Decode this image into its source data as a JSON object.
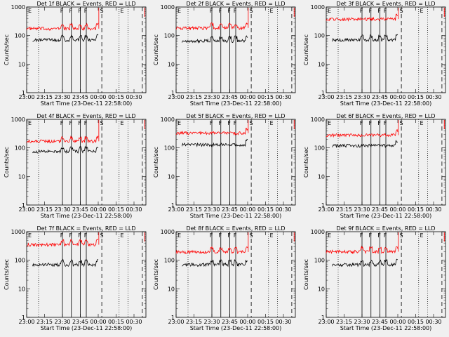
{
  "chart_data": {
    "type": "line",
    "xlabel": "Start Time (23-Dec-11 22:58:00)",
    "ylabel": "Counts/sec",
    "yscale": "log",
    "ylim": [
      1,
      1000
    ],
    "y_ticks": [
      1,
      10,
      100,
      1000
    ],
    "y_tick_labels": [
      "1",
      "10",
      "100",
      "1000"
    ],
    "x_range_minutes": [
      0,
      100
    ],
    "x_tick_labels": [
      "23:00",
      "23:15",
      "23:30",
      "23:45",
      "00:00",
      "00:15",
      "00:30"
    ],
    "x_tick_minutes": [
      0,
      15,
      30,
      45,
      60,
      75,
      90
    ],
    "series_colors": {
      "events": "#000000",
      "lld": "#ff0000"
    },
    "panels": [
      {
        "title": "Det 1f BLACK = Events, RED = LLD",
        "events": {
          "start": 5,
          "end": 60,
          "level": 70,
          "breaks": [
            30,
            37.5,
            45,
            50
          ]
        },
        "lld": {
          "start": 0,
          "end": 60,
          "level": 175,
          "breaks": [
            30,
            37.5,
            45,
            50
          ]
        },
        "f_times": [
          30,
          37.5,
          45,
          50
        ],
        "s_time": 63,
        "e_time": 80,
        "dotted_lines": [
          10,
          77.5,
          85
        ],
        "dashed_lines": [
          63,
          97
        ]
      },
      {
        "title": "Det 2f BLACK = Events, RED = LLD",
        "events": {
          "start": 5,
          "end": 60,
          "level": 65,
          "breaks": [
            30,
            37.5,
            45,
            50
          ]
        },
        "lld": {
          "start": 0,
          "end": 60,
          "level": 185,
          "breaks": [
            30,
            37.5,
            45,
            50
          ]
        },
        "f_times": [
          30,
          37.5,
          45,
          50
        ],
        "s_time": 63,
        "e_time": 80,
        "dotted_lines": [
          10,
          77.5,
          85
        ],
        "dashed_lines": [
          63,
          97
        ]
      },
      {
        "title": "Det 3f BLACK = Events, RED = LLD",
        "events": {
          "start": 5,
          "end": 60,
          "level": 70,
          "breaks": [
            30,
            37.5,
            45,
            50
          ]
        },
        "lld": {
          "start": 0,
          "end": 60,
          "level": 380,
          "breaks": []
        },
        "f_times": [
          30,
          37.5,
          45,
          50
        ],
        "s_time": 63,
        "e_time": 80,
        "dotted_lines": [
          10,
          77.5,
          85
        ],
        "dashed_lines": [
          63,
          97
        ]
      },
      {
        "title": "Det 4f BLACK = Events, RED = LLD",
        "events": {
          "start": 5,
          "end": 60,
          "level": 75,
          "breaks": [
            30,
            37.5,
            45,
            50
          ]
        },
        "lld": {
          "start": 0,
          "end": 60,
          "level": 170,
          "breaks": [
            30,
            37.5,
            45,
            50
          ]
        },
        "f_times": [
          30,
          37.5,
          45,
          50
        ],
        "s_time": 63,
        "e_time": 80,
        "dotted_lines": [
          10,
          77.5,
          85
        ],
        "dashed_lines": [
          63,
          97
        ]
      },
      {
        "title": "Det 5f BLACK = Events, RED = LLD",
        "events": {
          "start": 5,
          "end": 60,
          "level": 130,
          "breaks": []
        },
        "lld": {
          "start": 0,
          "end": 60,
          "level": 330,
          "breaks": []
        },
        "f_times": [
          30,
          37.5,
          45,
          50
        ],
        "s_time": 63,
        "e_time": 80,
        "dotted_lines": [
          10,
          77.5,
          85
        ],
        "dashed_lines": [
          63,
          97
        ]
      },
      {
        "title": "Det 6f BLACK = Events, RED = LLD",
        "events": {
          "start": 5,
          "end": 60,
          "level": 120,
          "breaks": []
        },
        "lld": {
          "start": 0,
          "end": 60,
          "level": 280,
          "breaks": []
        },
        "f_times": [
          30,
          37.5,
          45,
          50
        ],
        "s_time": 63,
        "e_time": 80,
        "dotted_lines": [
          10,
          77.5,
          85
        ],
        "dashed_lines": [
          63,
          97
        ]
      },
      {
        "title": "Det 7f BLACK = Events, RED = LLD",
        "events": {
          "start": 5,
          "end": 60,
          "level": 70,
          "breaks": [
            30,
            37.5,
            45,
            50
          ]
        },
        "lld": {
          "start": 0,
          "end": 60,
          "level": 350,
          "breaks": [
            30,
            37.5,
            45,
            50
          ]
        },
        "f_times": [
          30,
          37.5,
          45,
          50
        ],
        "s_time": 63,
        "e_time": 80,
        "dotted_lines": [
          10,
          77.5,
          85
        ],
        "dashed_lines": [
          63,
          97
        ]
      },
      {
        "title": "Det 8f BLACK = Events, RED = LLD",
        "events": {
          "start": 5,
          "end": 60,
          "level": 70,
          "breaks": [
            30,
            37.5,
            45,
            50
          ]
        },
        "lld": {
          "start": 0,
          "end": 60,
          "level": 195,
          "breaks": [
            30,
            37.5,
            45,
            50
          ]
        },
        "f_times": [
          30,
          37.5,
          45,
          50
        ],
        "s_time": 63,
        "e_time": 80,
        "dotted_lines": [
          10,
          77.5,
          85
        ],
        "dashed_lines": [
          63,
          97
        ]
      },
      {
        "title": "Det 9f BLACK = Events, RED = LLD",
        "events": {
          "start": 5,
          "end": 60,
          "level": 70,
          "breaks": [
            30,
            37.5,
            45,
            50
          ]
        },
        "lld": {
          "start": 0,
          "end": 60,
          "level": 200,
          "breaks": [
            30,
            37.5,
            45,
            50
          ]
        },
        "f_times": [
          30,
          37.5,
          45,
          50
        ],
        "s_time": 63,
        "e_time": 80,
        "dotted_lines": [
          10,
          77.5,
          85
        ],
        "dashed_lines": [
          63,
          97
        ]
      }
    ],
    "marker_labels": {
      "f": "F",
      "s": "S",
      "e": "E"
    }
  }
}
